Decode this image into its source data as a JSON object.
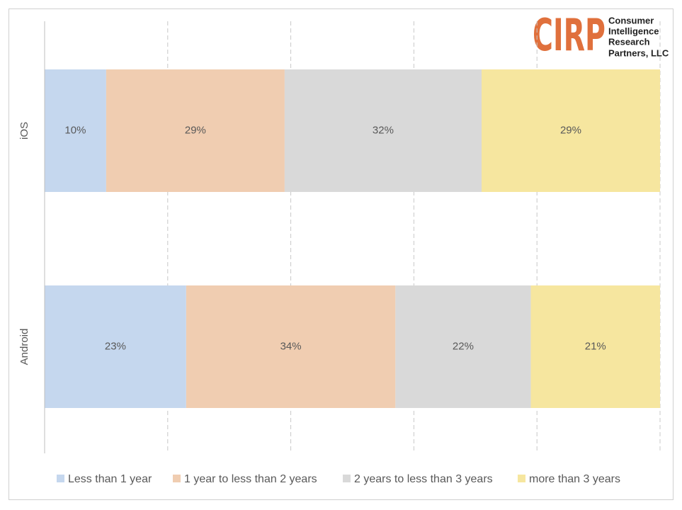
{
  "logo": {
    "mark": "CIRP",
    "lines": [
      "Consumer",
      "Intelligence",
      "Research",
      "Partners, LLC"
    ]
  },
  "chart_data": {
    "type": "stacked-bar-horizontal",
    "categories": [
      "iOS",
      "Android"
    ],
    "series": [
      {
        "name": "Less than 1 year",
        "color": "#c5d7ee",
        "values": [
          10,
          23
        ],
        "value_labels": [
          "10%",
          "23%"
        ]
      },
      {
        "name": "1 year to less than 2 years",
        "color": "#f0cdb1",
        "values": [
          29,
          34
        ],
        "value_labels": [
          "29%",
          "34%"
        ]
      },
      {
        "name": "2 years to less than 3 years",
        "color": "#d9d9d9",
        "values": [
          32,
          22
        ],
        "value_labels": [
          "32%",
          "22%"
        ]
      },
      {
        "name": "more than 3 years",
        "color": "#f6e69f",
        "values": [
          29,
          21
        ],
        "value_labels": [
          "29%",
          "21%"
        ]
      }
    ],
    "xlim": [
      0,
      100
    ],
    "xticks": [
      0,
      20,
      40,
      60,
      80,
      100
    ],
    "grid": true,
    "legend": "bottom"
  }
}
